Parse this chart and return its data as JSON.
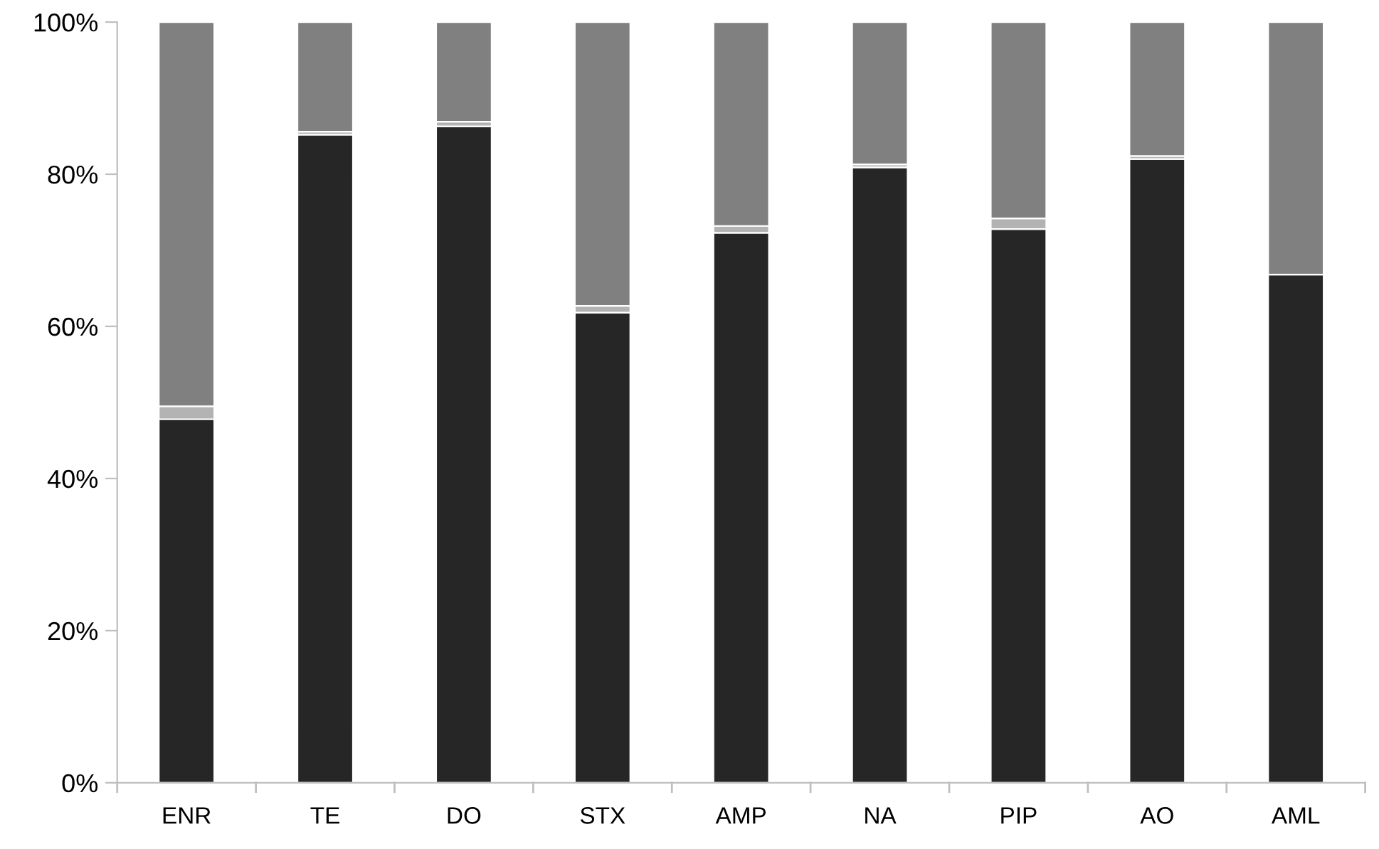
{
  "chart_data": {
    "type": "bar",
    "stacked": true,
    "categories": [
      "ENR",
      "TE",
      "DO",
      "STX",
      "AMP",
      "NA",
      "PIP",
      "AO",
      "AML"
    ],
    "series": [
      {
        "color": "#262626",
        "values": [
          47.8,
          85.2,
          86.3,
          61.8,
          72.3,
          80.9,
          72.8,
          82.0,
          66.8
        ]
      },
      {
        "color": "#b3b3b3",
        "values": [
          1.7,
          0.4,
          0.6,
          0.9,
          0.9,
          0.4,
          1.4,
          0.4,
          null
        ]
      },
      {
        "color": "#808080",
        "values": [
          50.5,
          14.4,
          13.1,
          37.3,
          26.8,
          18.7,
          25.8,
          17.6,
          33.2
        ]
      }
    ],
    "ylim": [
      0,
      100
    ],
    "yticks": [
      {
        "value": 0,
        "label": "0%"
      },
      {
        "value": 20,
        "label": "20%"
      },
      {
        "value": 40,
        "label": "40%"
      },
      {
        "value": 60,
        "label": "60%"
      },
      {
        "value": 80,
        "label": "80%"
      },
      {
        "value": 100,
        "label": "100%"
      }
    ],
    "grid": false,
    "legend": false
  }
}
